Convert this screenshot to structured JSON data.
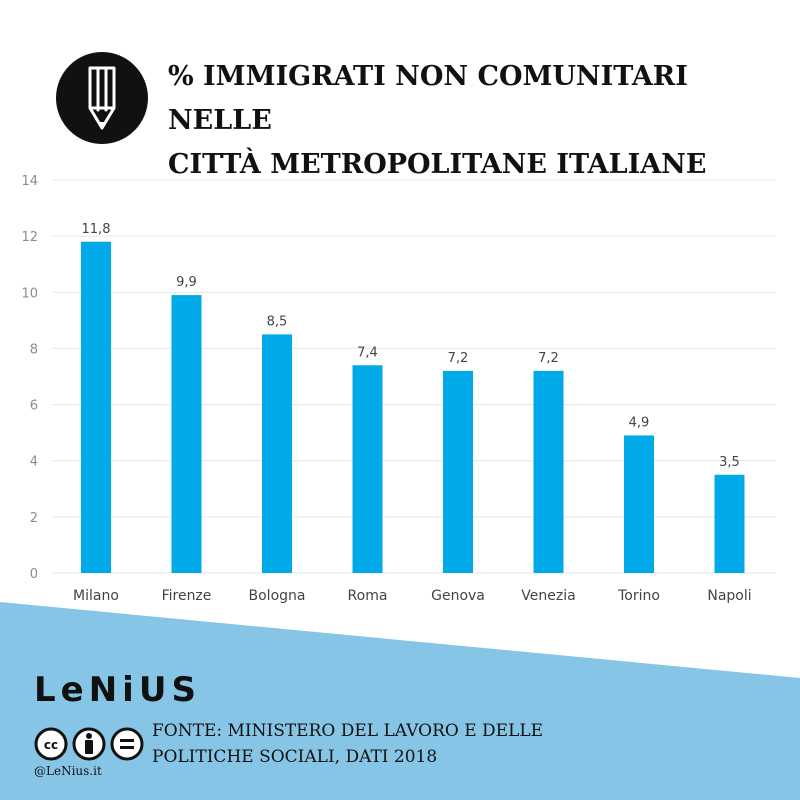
{
  "header": {
    "title_line1": "% IMMIGRATI NON COMUNITARI NELLE",
    "title_line2": "CITTÀ METROPOLITANE ITALIANE"
  },
  "colors": {
    "bar": "#00a9e8",
    "band": "#86c5e6",
    "grid": "#e6e6e6",
    "axis_text": "#8c8c8c",
    "label_text": "#444444"
  },
  "chart_data": {
    "type": "bar",
    "title": "% IMMIGRATI NON COMUNITARI NELLE CITTÀ METROPOLITANE ITALIANE",
    "categories": [
      "Milano",
      "Firenze",
      "Bologna",
      "Roma",
      "Genova",
      "Venezia",
      "Torino",
      "Napoli"
    ],
    "values": [
      11.8,
      9.9,
      8.5,
      7.4,
      7.2,
      7.2,
      4.9,
      3.5
    ],
    "value_labels": [
      "11,8",
      "9,9",
      "8,5",
      "7,4",
      "7,2",
      "7,2",
      "4,9",
      "3,5"
    ],
    "ylim": [
      0,
      14
    ],
    "yticks": [
      0,
      2,
      4,
      6,
      8,
      10,
      12,
      14
    ],
    "xlabel": "",
    "ylabel": "",
    "grid": true,
    "legend": "none"
  },
  "footer": {
    "brand": "LeNiUS",
    "handle": "@LeNius.it",
    "cc_icons": [
      "cc-icon",
      "by-icon",
      "nd-icon"
    ],
    "source_line1": "FONTE: MINISTERO DEL LAVORO E DELLE",
    "source_line2": "POLITICHE SOCIALI, DATI 2018"
  }
}
